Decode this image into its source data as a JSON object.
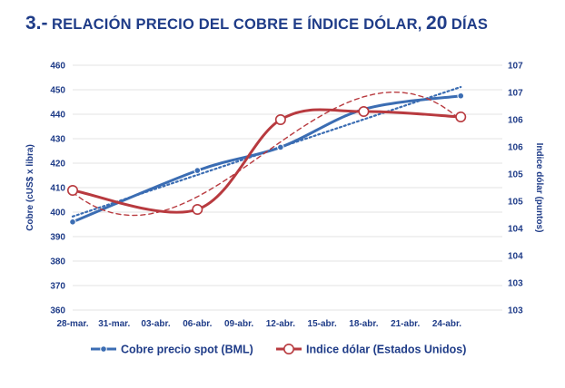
{
  "title": {
    "number": "3.-",
    "text_a": "RELACIÓN PRECIO DEL COBRE E ÍNDICE DÓLAR,",
    "num": "20",
    "text_b": "DÍAS"
  },
  "chart_data": {
    "type": "line",
    "categories": [
      "28-mar.",
      "31-mar.",
      "03-abr.",
      "06-abr.",
      "09-abr.",
      "12-abr.",
      "15-abr.",
      "18-abr.",
      "21-abr.",
      "24-abr."
    ],
    "x": [
      "28-mar.",
      "06-abr.",
      "12-abr.",
      "18-abr.",
      "25-abr."
    ],
    "series": [
      {
        "name": "Cobre precio spot (BML)",
        "axis": "left",
        "color": "#3b6db3",
        "marker": "filled-circle",
        "values": [
          396,
          417,
          426.5,
          442,
          447.5
        ],
        "trendline": "dotted linear"
      },
      {
        "name": "Indice dólar (Estados Unidos)",
        "axis": "right",
        "color": "#b83a3f",
        "marker": "open-circle",
        "values": [
          104.9,
          104.55,
          106.2,
          106.35,
          106.25
        ],
        "trendline": "dashed polynomial"
      }
    ],
    "ylabel": "Cobre (cUS$ x libra)",
    "y2label": "Indice dólar (puntos)",
    "ylim": [
      360,
      460
    ],
    "y_ticks": [
      "460",
      "450",
      "440",
      "430",
      "420",
      "410",
      "400",
      "390",
      "380",
      "370",
      "360"
    ],
    "y2_ticks": [
      "107",
      "107",
      "106",
      "106",
      "105",
      "105",
      "104",
      "104",
      "103",
      "103"
    ],
    "y2lim": [
      102.7,
      107.2
    ],
    "grid": true,
    "legend": "bottom"
  }
}
